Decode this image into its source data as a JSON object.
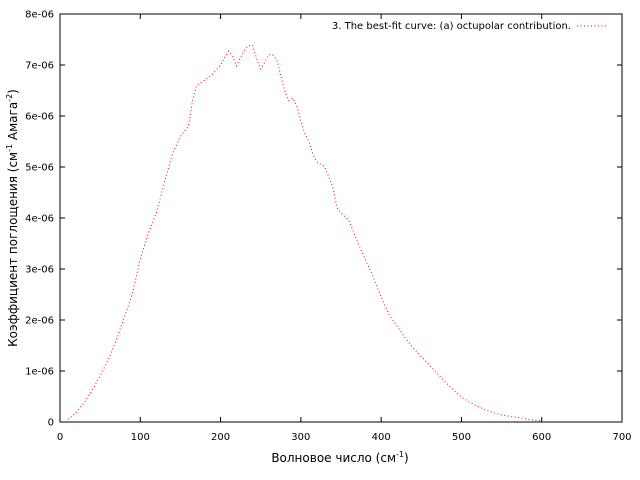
{
  "chart_data": {
    "type": "line",
    "title": "",
    "xlabel_main": "Волновое число (см",
    "xlabel_sup": "-1",
    "xlabel_tail": ")",
    "ylabel_main": "Коэффициент поглощения (см",
    "ylabel_sup1": "-1",
    "ylabel_mid": " Амага",
    "ylabel_sup2": "-2",
    "ylabel_tail": ")",
    "xlim": [
      0,
      700
    ],
    "ylim": [
      0,
      8e-06
    ],
    "xticks": [
      0,
      100,
      200,
      300,
      400,
      500,
      600,
      700
    ],
    "xtick_labels": [
      "0",
      "100",
      "200",
      "300",
      "400",
      "500",
      "600",
      "700"
    ],
    "yticks": [
      0,
      1e-06,
      2e-06,
      3e-06,
      4e-06,
      5e-06,
      6e-06,
      7e-06,
      8e-06
    ],
    "ytick_labels": [
      "0",
      "1e-06",
      "2e-06",
      "3e-06",
      "4e-06",
      "5e-06",
      "6e-06",
      "7e-06",
      "8e-06"
    ],
    "grid": false,
    "legend_position": "top-right",
    "series": [
      {
        "name": "3. The best-fit curve: (a) octupolar contribution.",
        "color": "#ff0000",
        "style": "dotted",
        "x": [
          10,
          20,
          30,
          40,
          50,
          60,
          70,
          80,
          90,
          100,
          110,
          120,
          130,
          140,
          150,
          160,
          165,
          170,
          180,
          190,
          200,
          205,
          210,
          215,
          220,
          225,
          230,
          235,
          240,
          245,
          250,
          255,
          260,
          265,
          270,
          275,
          280,
          285,
          290,
          295,
          300,
          305,
          310,
          315,
          320,
          330,
          340,
          345,
          350,
          360,
          370,
          380,
          390,
          400,
          410,
          420,
          430,
          440,
          450,
          460,
          470,
          480,
          490,
          500,
          510,
          520,
          530,
          540,
          550,
          560,
          570,
          580,
          590,
          600
        ],
        "y": [
          5e-08,
          1.8e-07,
          3.8e-07,
          6.2e-07,
          9e-07,
          1.22e-06,
          1.6e-06,
          2.05e-06,
          2.5e-06,
          3.2e-06,
          3.7e-06,
          4.1e-06,
          4.7e-06,
          5.25e-06,
          5.6e-06,
          5.8e-06,
          6.3e-06,
          6.6e-06,
          6.7e-06,
          6.82e-06,
          7e-06,
          7.15e-06,
          7.27e-06,
          7.18e-06,
          6.98e-06,
          7.15e-06,
          7.3e-06,
          7.38e-06,
          7.38e-06,
          7.12e-06,
          6.92e-06,
          7.05e-06,
          7.2e-06,
          7.2e-06,
          7.1e-06,
          6.8e-06,
          6.48e-06,
          6.3e-06,
          6.35e-06,
          6.2e-06,
          5.9e-06,
          5.65e-06,
          5.5e-06,
          5.25e-06,
          5.1e-06,
          5e-06,
          4.6e-06,
          4.2e-06,
          4.1e-06,
          3.95e-06,
          3.55e-06,
          3.2e-06,
          2.85e-06,
          2.45e-06,
          2.1e-06,
          1.88e-06,
          1.65e-06,
          1.45e-06,
          1.28e-06,
          1.12e-06,
          9.5e-07,
          7.8e-07,
          6.3e-07,
          4.9e-07,
          3.9e-07,
          3.1e-07,
          2.4e-07,
          1.8e-07,
          1.4e-07,
          1.1e-07,
          9e-08,
          6e-08,
          4e-08,
          2e-08
        ]
      }
    ]
  }
}
